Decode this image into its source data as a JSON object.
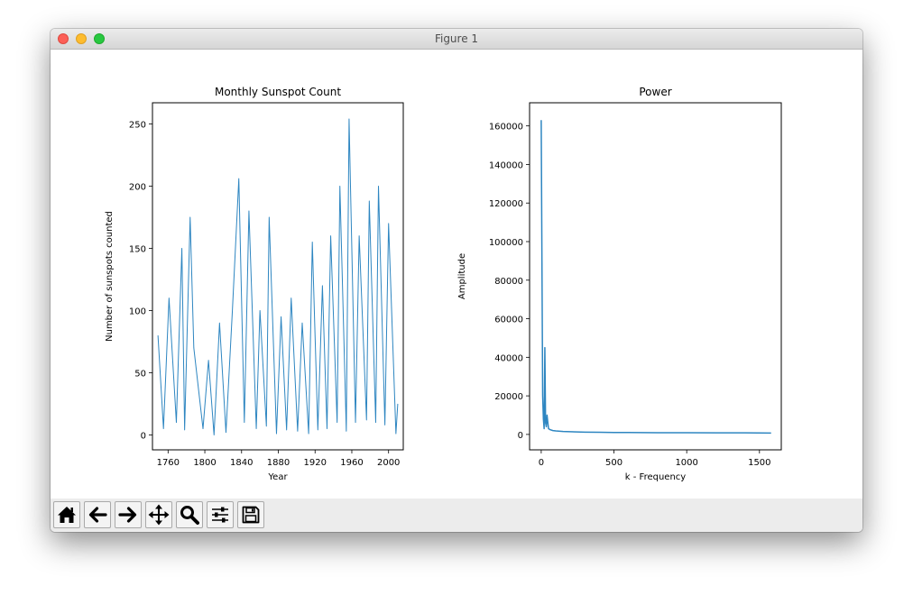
{
  "window": {
    "title": "Figure 1",
    "controls": [
      "close",
      "minimize",
      "maximize"
    ]
  },
  "toolbar": {
    "buttons": [
      {
        "name": "home",
        "icon": "home-icon"
      },
      {
        "name": "back",
        "icon": "arrow-left-icon"
      },
      {
        "name": "forward",
        "icon": "arrow-right-icon"
      },
      {
        "name": "pan",
        "icon": "move-arrows-icon"
      },
      {
        "name": "zoom",
        "icon": "magnifier-icon"
      },
      {
        "name": "configure-subplots",
        "icon": "sliders-icon"
      },
      {
        "name": "save",
        "icon": "floppy-disk-icon"
      }
    ]
  },
  "colors": {
    "series": "#2e86c1",
    "toolbar_bg": "#ececec"
  },
  "chart_data": [
    {
      "type": "line",
      "title": "Monthly Sunspot Count",
      "xlabel": "Year",
      "ylabel": "Number of sunspots counted",
      "xlim": [
        1743,
        2016
      ],
      "ylim": [
        -12,
        267
      ],
      "xticks": [
        1760,
        1800,
        1840,
        1880,
        1920,
        1960,
        2000
      ],
      "yticks": [
        0,
        50,
        100,
        150,
        200,
        250
      ],
      "series": [
        {
          "x": [
            1749,
            1755,
            1761,
            1769,
            1775,
            1778,
            1784,
            1788,
            1798,
            1804,
            1810,
            1816,
            1823,
            1830,
            1837,
            1843,
            1848,
            1856,
            1860,
            1867,
            1870,
            1878,
            1883,
            1889,
            1894,
            1901,
            1906,
            1913,
            1917,
            1923,
            1928,
            1933,
            1937,
            1944,
            1947,
            1954,
            1957,
            1964,
            1968,
            1976,
            1979,
            1986,
            1989,
            1996,
            2000,
            2008,
            2010
          ],
          "y": [
            80,
            5,
            110,
            10,
            150,
            4,
            175,
            70,
            5,
            60,
            0,
            90,
            2,
            100,
            206,
            10,
            180,
            5,
            100,
            7,
            175,
            1,
            95,
            4,
            110,
            3,
            90,
            1,
            155,
            4,
            120,
            5,
            160,
            10,
            200,
            3,
            254,
            10,
            160,
            12,
            188,
            10,
            200,
            8,
            170,
            1,
            25
          ]
        }
      ]
    },
    {
      "type": "line",
      "title": "Power",
      "xlabel": "k - Frequency",
      "ylabel": "Amplitude",
      "xlim": [
        -80,
        1650
      ],
      "ylim": [
        -8000,
        172000
      ],
      "xticks": [
        0,
        500,
        1000,
        1500
      ],
      "yticks": [
        0,
        20000,
        40000,
        60000,
        80000,
        100000,
        120000,
        140000,
        160000
      ],
      "series": [
        {
          "x": [
            0,
            5,
            10,
            15,
            20,
            25,
            30,
            35,
            40,
            50,
            60,
            80,
            100,
            150,
            200,
            300,
            400,
            500,
            600,
            800,
            1000,
            1200,
            1400,
            1580
          ],
          "y": [
            163000,
            90000,
            20000,
            8000,
            3000,
            45000,
            6000,
            4000,
            10000,
            3000,
            2500,
            2000,
            1800,
            1500,
            1400,
            1200,
            1100,
            1000,
            1000,
            900,
            900,
            800,
            800,
            700
          ]
        }
      ]
    }
  ]
}
